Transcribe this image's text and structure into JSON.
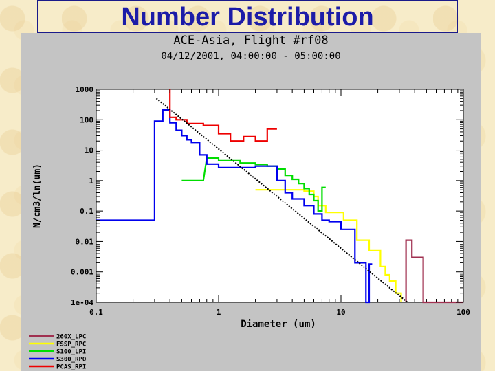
{
  "slide": {
    "title": "Number Distribution"
  },
  "chart_data": {
    "type": "line",
    "title": "ACE-Asia, Flight #rf08",
    "subtitle": "04/12/2001, 04:00:00 - 05:00:00",
    "xlabel": "Diameter (um)",
    "ylabel": "N/cm3/ln(um)",
    "x_scale": "log",
    "y_scale": "log",
    "xlim": [
      0.1,
      100
    ],
    "ylim": [
      0.0001,
      1000
    ],
    "x_ticks": [
      "0.1",
      "1",
      "10",
      "100"
    ],
    "y_ticks": [
      "1e-04",
      "0.001",
      "0.01",
      "0.1",
      "1",
      "10",
      "100",
      "1000"
    ],
    "grid": false,
    "legend_position": "bottom-left",
    "series": [
      {
        "name": "260X_LPC",
        "color": "#a03050",
        "x": [
          34,
          34,
          38,
          38,
          47,
          47,
          56,
          56,
          100
        ],
        "y": [
          0.0001,
          0.011,
          0.011,
          0.003,
          0.003,
          0.0001,
          0.0001,
          0.0001,
          0.0001
        ]
      },
      {
        "name": "FSSP_RPC",
        "color": "#ffff00",
        "x": [
          2,
          3,
          3,
          5,
          5,
          6,
          6,
          6.5,
          6.5,
          7.5,
          7.5,
          10.5,
          10.5,
          13.5,
          13.5,
          17,
          17,
          21,
          21,
          23,
          23,
          25,
          25,
          28,
          28,
          31,
          31
        ],
        "y": [
          0.5,
          0.5,
          0.5,
          0.5,
          0.45,
          0.45,
          0.3,
          0.3,
          0.15,
          0.15,
          0.09,
          0.09,
          0.05,
          0.05,
          0.011,
          0.011,
          0.005,
          0.005,
          0.0015,
          0.0015,
          0.0008,
          0.0008,
          0.0005,
          0.0005,
          0.0002,
          0.0002,
          0.0001
        ]
      },
      {
        "name": "S100_LPI",
        "color": "#00dd00",
        "x": [
          0.5,
          0.75,
          0.75,
          0.8,
          0.8,
          1.0,
          1.0,
          1.5,
          1.5,
          2.0,
          2.0,
          2.5,
          2.5,
          3.0,
          3.0,
          3.5,
          3.5,
          4.0,
          4.0,
          4.5,
          4.5,
          5.0,
          5.0,
          5.5,
          5.5,
          6.0,
          6.0,
          6.5,
          6.5,
          7.0,
          7.0,
          7.5
        ],
        "y": [
          1,
          1,
          1,
          5.5,
          5.5,
          5.5,
          4.5,
          4.5,
          3.8,
          3.8,
          3.4,
          3.4,
          3.0,
          3.0,
          2.4,
          2.4,
          1.5,
          1.5,
          1.1,
          1.1,
          0.8,
          0.8,
          0.55,
          0.55,
          0.35,
          0.35,
          0.22,
          0.22,
          0.1,
          0.1,
          0.6,
          0.6
        ]
      },
      {
        "name": "S300_RPO",
        "color": "#0000ee",
        "x": [
          0.1,
          0.3,
          0.3,
          0.35,
          0.35,
          0.4,
          0.4,
          0.45,
          0.45,
          0.5,
          0.5,
          0.55,
          0.55,
          0.6,
          0.6,
          0.7,
          0.7,
          0.8,
          0.8,
          1.0,
          1.0,
          2.0,
          2.0,
          3.0,
          3.0,
          3.5,
          3.5,
          4.0,
          4.0,
          5.0,
          5.0,
          6.0,
          6.0,
          7.0,
          7.0,
          8.0,
          8.0,
          10.0,
          10.0,
          13.0,
          13.0,
          16.0,
          16.0,
          17.0,
          17.0,
          18.0
        ],
        "y": [
          0.05,
          0.05,
          90,
          90,
          210,
          210,
          80,
          80,
          45,
          45,
          30,
          30,
          22,
          22,
          18,
          18,
          7,
          7,
          3.5,
          3.5,
          2.7,
          2.7,
          3.0,
          3.0,
          1.0,
          1.0,
          0.4,
          0.4,
          0.25,
          0.25,
          0.15,
          0.15,
          0.08,
          0.08,
          0.05,
          0.05,
          0.045,
          0.045,
          0.025,
          0.025,
          0.002,
          0.002,
          0.0001,
          0.0001,
          0.0018,
          0.0018
        ]
      },
      {
        "name": "PCAS_RPI",
        "color": "#ee0000",
        "x": [
          0.4,
          0.4,
          0.45,
          0.45,
          0.55,
          0.55,
          0.75,
          0.75,
          1.0,
          1.0,
          1.25,
          1.25,
          1.6,
          1.6,
          2.0,
          2.0,
          2.5,
          2.5,
          3.0
        ],
        "y": [
          1000,
          120,
          120,
          100,
          100,
          75,
          75,
          65,
          65,
          35,
          35,
          20,
          20,
          28,
          28,
          20,
          20,
          50,
          50
        ]
      },
      {
        "name": "",
        "color": "#000000",
        "dashed": true,
        "x": [
          0.31,
          35
        ],
        "y": [
          500,
          0.0001
        ]
      }
    ]
  }
}
